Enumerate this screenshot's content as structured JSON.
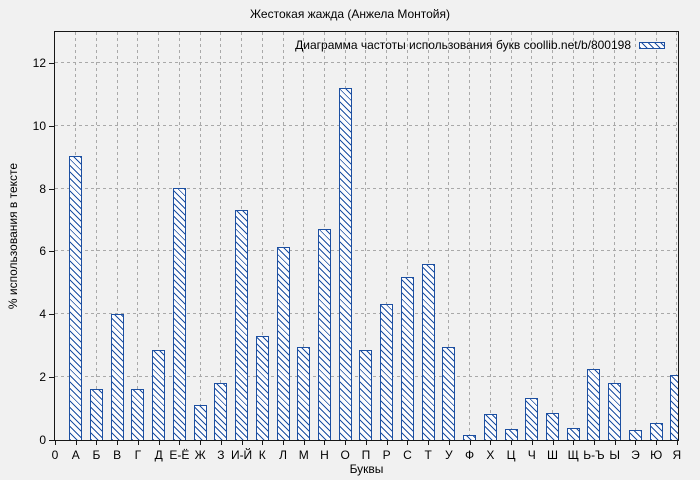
{
  "chart_data": {
    "type": "bar",
    "title": "Жестокая жажда (Анжела Монтойя)",
    "legend": "Диаграмма частоты использования букв coollib.net/b/800198",
    "legend_position": "top-right",
    "xlabel": "Буквы",
    "ylabel": "% использования в тексте",
    "origin_tick_label": "0",
    "categories": [
      "А",
      "Б",
      "В",
      "Г",
      "Д",
      "Е-Ё",
      "Ж",
      "З",
      "И-Й",
      "К",
      "Л",
      "М",
      "Н",
      "О",
      "П",
      "Р",
      "С",
      "Т",
      "У",
      "Ф",
      "Х",
      "Ц",
      "Ч",
      "Ш",
      "Щ",
      "Ь-Ъ",
      "Ы",
      "Э",
      "Ю",
      "Я"
    ],
    "values": [
      9.05,
      1.63,
      4.02,
      1.63,
      2.88,
      8.02,
      1.1,
      1.8,
      7.33,
      3.3,
      6.15,
      2.95,
      6.7,
      11.2,
      2.85,
      4.33,
      5.2,
      5.6,
      2.96,
      0.16,
      0.83,
      0.35,
      1.33,
      0.85,
      0.38,
      2.26,
      1.8,
      0.32,
      0.55,
      2.07
    ],
    "yticks": [
      0,
      2,
      4,
      6,
      8,
      10,
      12
    ],
    "ylim": [
      0,
      13
    ],
    "grid": true,
    "bar_style": "diagonal-hatch",
    "colors": {
      "bar": "#1c4fa1",
      "background": "#f1f1f1",
      "grid": "#a9a9a9",
      "axis": "#171717",
      "text": "#000000"
    }
  }
}
